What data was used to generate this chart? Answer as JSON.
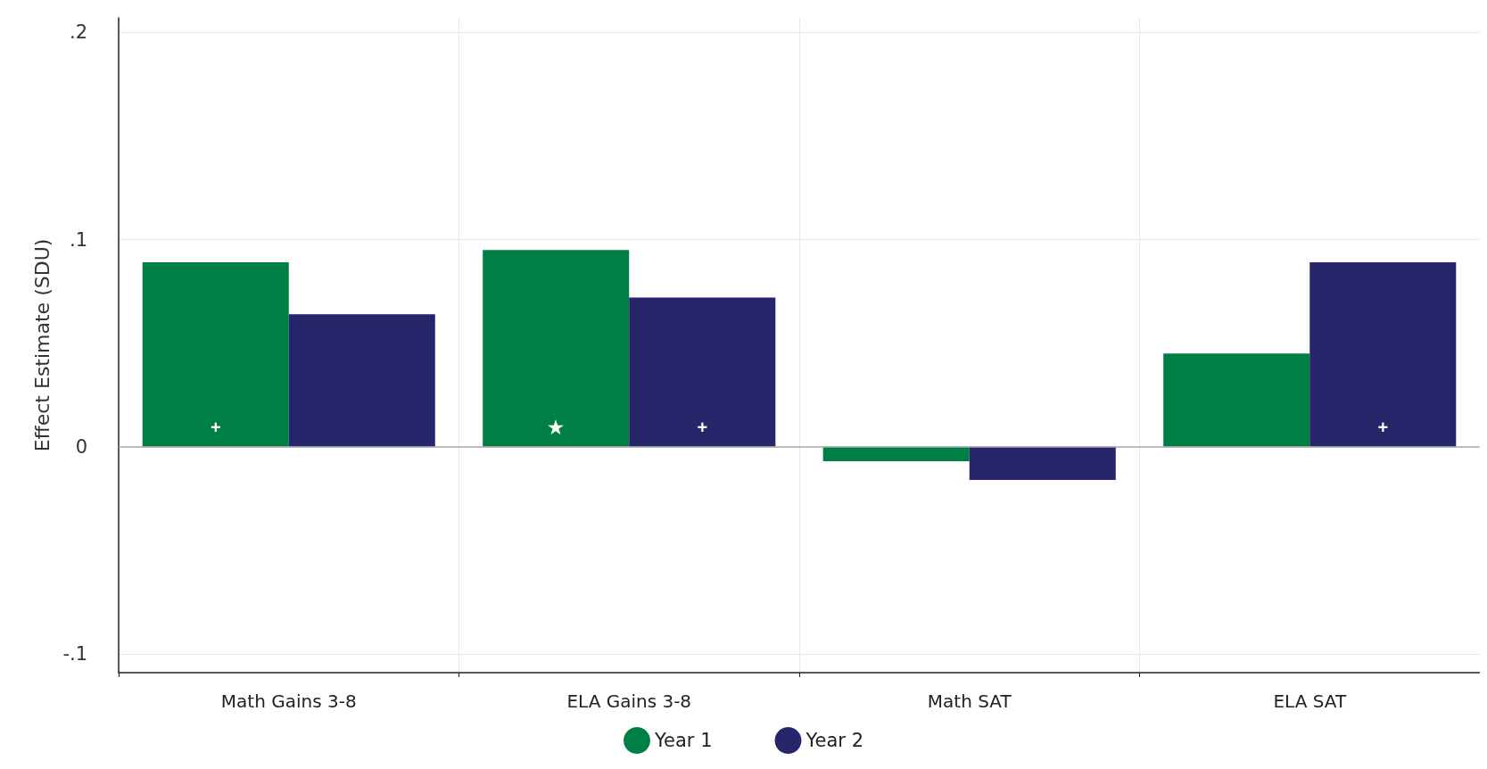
{
  "chart_data": {
    "type": "bar",
    "ylabel": "Effect Estimate (SDU)",
    "categories": [
      "Math Gains 3-8",
      "ELA Gains 3-8",
      "Math SAT",
      "ELA SAT"
    ],
    "series": [
      {
        "name": "Year 1",
        "color": "#007f45",
        "values": [
          0.089,
          0.095,
          -0.007,
          0.045
        ],
        "value_labels": [
          "+",
          "★",
          null,
          null
        ]
      },
      {
        "name": "Year 2",
        "color": "#27266b",
        "values": [
          0.064,
          0.072,
          -0.016,
          0.089
        ],
        "value_labels": [
          null,
          "+",
          null,
          "+"
        ]
      }
    ],
    "ylim": [
      -0.109,
      0.207
    ],
    "yticks": [
      {
        "value": -0.1,
        "label": "-.1"
      },
      {
        "value": 0,
        "label": "0"
      },
      {
        "value": 0.1,
        "label": ".1"
      },
      {
        "value": 0.2,
        "label": ".2"
      }
    ],
    "ref_lines": [
      {
        "axis": "y",
        "value": 0,
        "color": "#aaaaaa"
      }
    ],
    "grid": true,
    "legend": "bottom"
  }
}
